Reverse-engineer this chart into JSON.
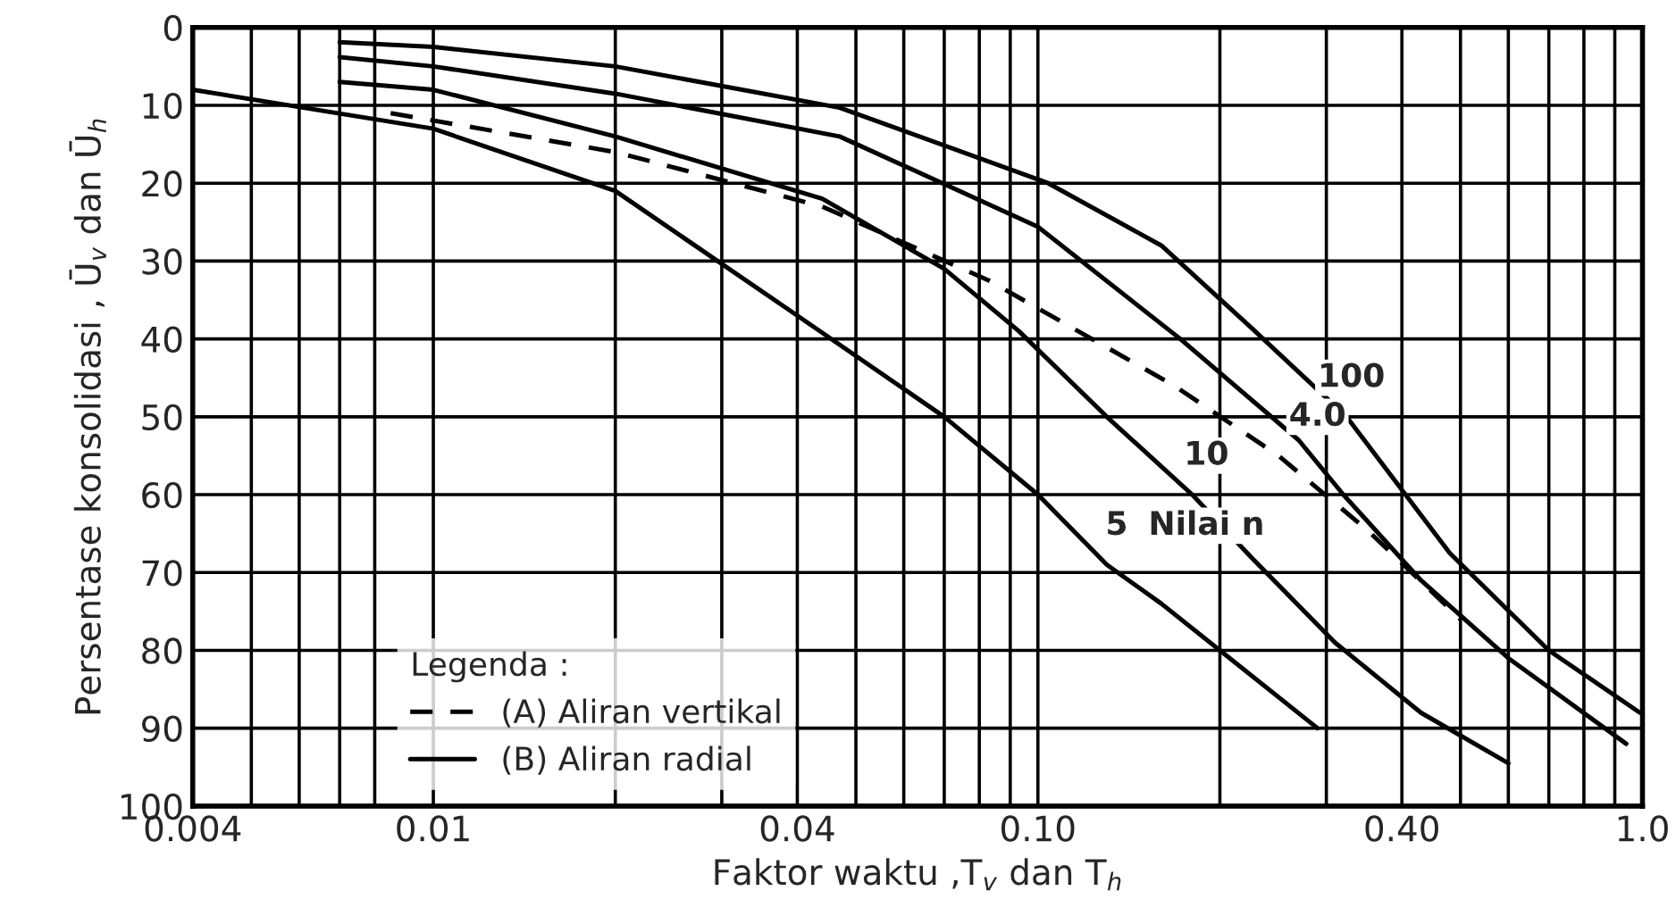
{
  "chart_data": {
    "type": "line",
    "xlabel": "Faktor waktu ,T$_{v}$ dan T$_{h}$",
    "ylabel": "Persentase konsolidasi , Ū$_{v}$ dan Ū$_{h}$",
    "legend_title": "Legenda :",
    "legend": "bottom left",
    "log": "x",
    "grid": true,
    "xlim": [
      0.004,
      1.0
    ],
    "ylim": [
      100,
      0
    ],
    "xticks": [
      {
        "value": 0.004,
        "label": "0.004"
      },
      {
        "value": 0.005,
        "label": null
      },
      {
        "value": 0.006,
        "label": null
      },
      {
        "value": 0.007,
        "label": null
      },
      {
        "value": 0.008,
        "label": null
      },
      {
        "value": 0.01,
        "label": "0.01"
      },
      {
        "value": 0.02,
        "label": null
      },
      {
        "value": 0.03,
        "label": null
      },
      {
        "value": 0.04,
        "label": "0.04"
      },
      {
        "value": 0.05,
        "label": null
      },
      {
        "value": 0.06,
        "label": null
      },
      {
        "value": 0.07,
        "label": null
      },
      {
        "value": 0.08,
        "label": null
      },
      {
        "value": 0.09,
        "label": null
      },
      {
        "value": 0.1,
        "label": "0.10"
      },
      {
        "value": 0.2,
        "label": null
      },
      {
        "value": 0.3,
        "label": null
      },
      {
        "value": 0.4,
        "label": "0.40"
      },
      {
        "value": 0.5,
        "label": null
      },
      {
        "value": 0.6,
        "label": null
      },
      {
        "value": 0.7,
        "label": null
      },
      {
        "value": 0.8,
        "label": null
      },
      {
        "value": 0.9,
        "label": null
      },
      {
        "value": 1.0,
        "label": "1.0"
      }
    ],
    "yticks": [
      0,
      10,
      20,
      30,
      40,
      50,
      60,
      70,
      80,
      90,
      100
    ],
    "series": [
      {
        "name": "(A) Aliran vertikal",
        "color": "#000000",
        "line_style": "dashed",
        "x": [
          0.0085,
          0.02,
          0.044,
          0.083,
          0.168,
          0.25,
          0.35,
          0.5
        ],
        "values": [
          11,
          16,
          23,
          32.5,
          46,
          55,
          64.5,
          76
        ]
      },
      {
        "name": "(B) Aliran radial",
        "color": "#000000",
        "line_style": "solid",
        "x": [
          0.004,
          0.01,
          0.02,
          0.04,
          0.07,
          0.1,
          0.13,
          0.16,
          0.2,
          0.29
        ],
        "values": [
          8,
          13,
          21,
          37,
          50,
          60,
          69,
          74,
          80,
          90
        ]
      },
      {
        "color": "#000000",
        "line_style": "solid",
        "x": [
          0.007,
          0.01,
          0.02,
          0.044,
          0.07,
          0.093,
          0.13,
          0.18,
          0.225,
          0.31,
          0.43,
          0.6
        ],
        "values": [
          7,
          8,
          14,
          22,
          31,
          39,
          50,
          60,
          68,
          79,
          88,
          94.5
        ]
      },
      {
        "color": "#000000",
        "line_style": "solid",
        "x": [
          0.007,
          0.01,
          0.02,
          0.047,
          0.1,
          0.172,
          0.27,
          0.32,
          0.43,
          0.6,
          0.94
        ],
        "values": [
          3.8,
          5,
          8.5,
          14,
          25.6,
          40,
          53,
          60,
          71,
          81,
          92
        ]
      },
      {
        "color": "#000000",
        "line_style": "solid",
        "x": [
          0.007,
          0.01,
          0.02,
          0.047,
          0.104,
          0.16,
          0.225,
          0.324,
          0.48,
          0.7,
          0.99
        ],
        "values": [
          1.9,
          2.5,
          5,
          10.3,
          20,
          28,
          38.5,
          50,
          67.5,
          80,
          88
        ]
      }
    ],
    "annotations": [
      {
        "text": "100",
        "x": 0.33,
        "y": 45
      },
      {
        "text": "4.0",
        "x": 0.29,
        "y": 50
      },
      {
        "text": "10",
        "x": 0.19,
        "y": 55
      },
      {
        "text": "5",
        "x": 0.135,
        "y": 64
      },
      {
        "text": "Nilai n",
        "x": 0.19,
        "y": 64
      }
    ]
  }
}
